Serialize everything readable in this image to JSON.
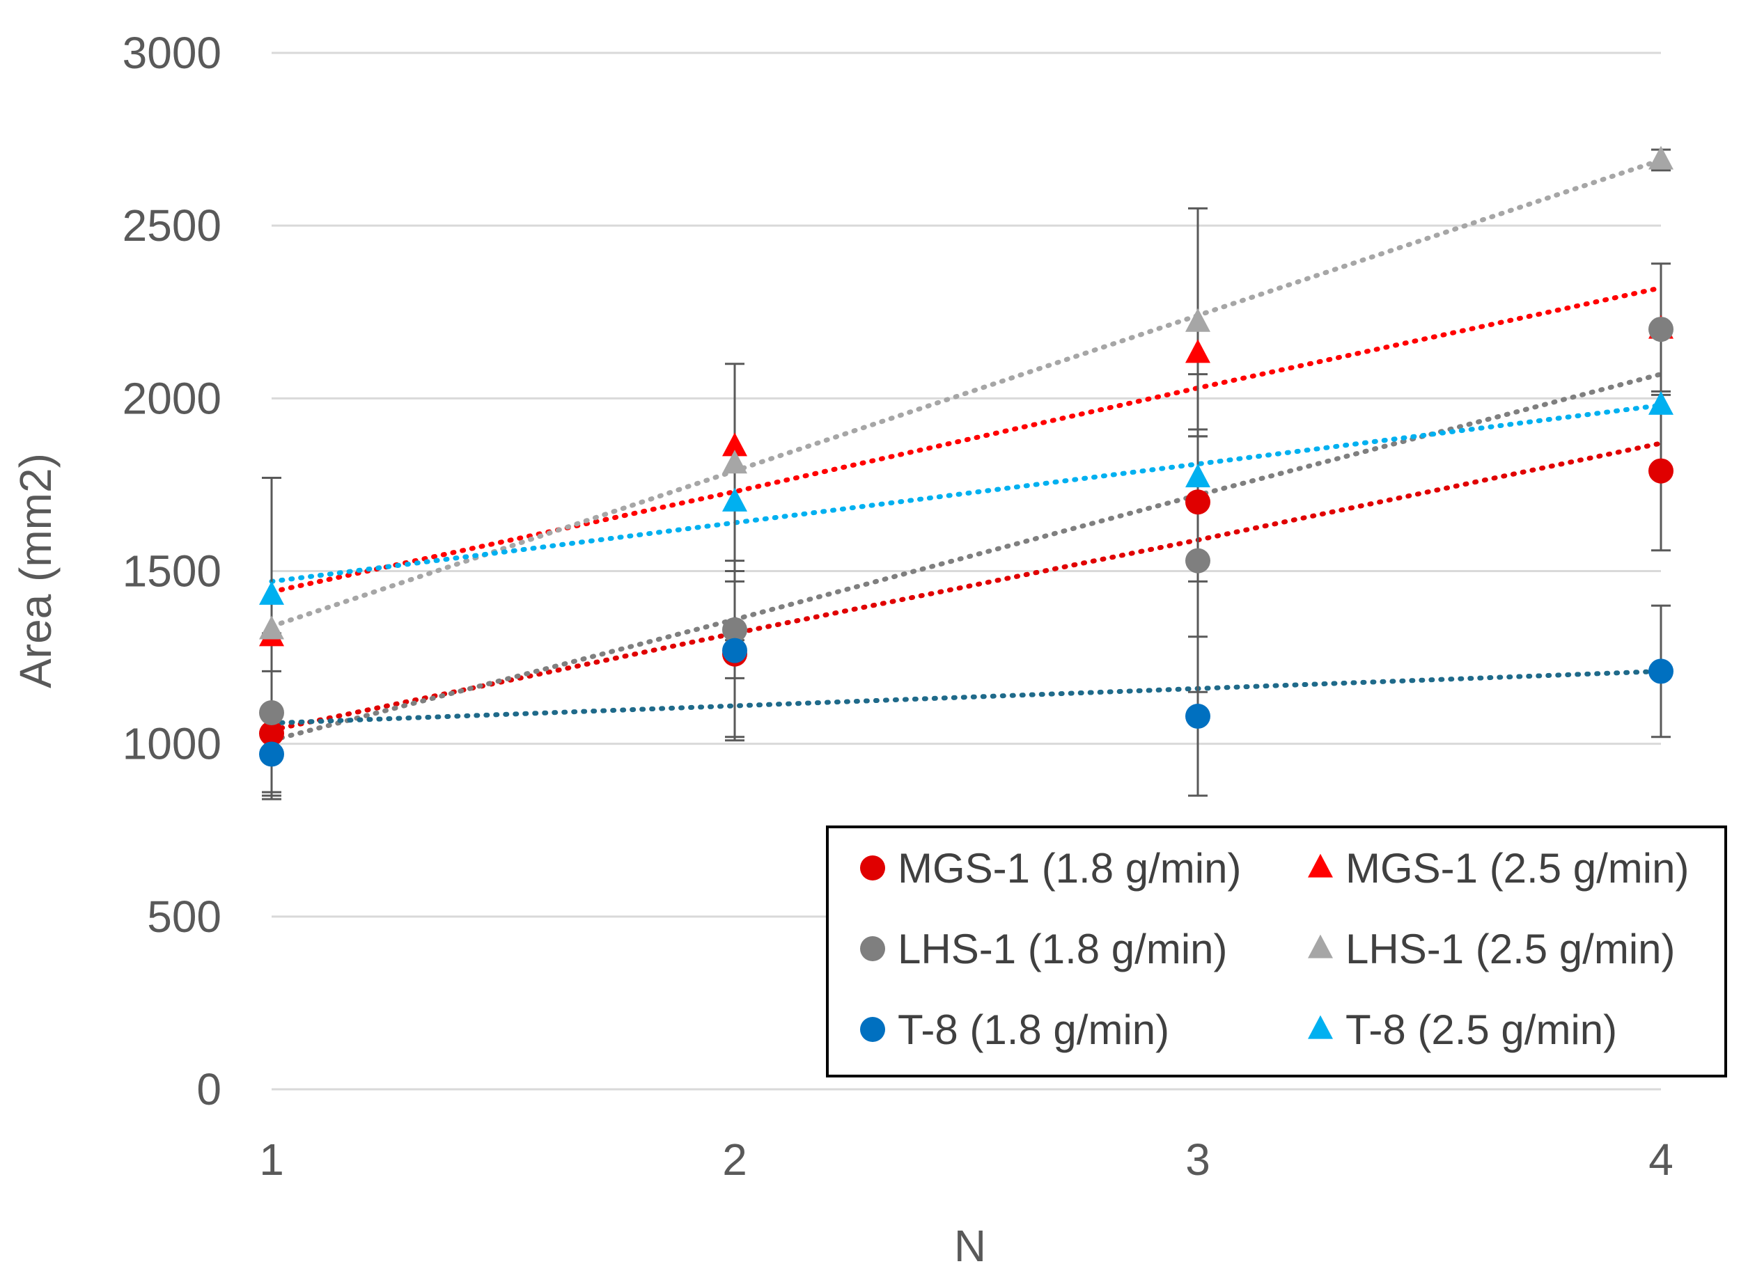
{
  "chart_data": {
    "type": "scatter",
    "title": "",
    "xlabel": "N",
    "ylabel": "Area (mm2)",
    "xlim": [
      1,
      4
    ],
    "ylim": [
      0,
      3000
    ],
    "x_ticks": [
      "1",
      "2",
      "3",
      "4"
    ],
    "y_ticks": [
      "0",
      "500",
      "1000",
      "1500",
      "2000",
      "2500",
      "3000"
    ],
    "grid": "horizontal",
    "legend_position": "bottom-right",
    "x": [
      1,
      2,
      3,
      4
    ],
    "series": [
      {
        "name": "MGS-1 (1.8 g/min)",
        "marker": "circle",
        "color": "#e00000",
        "values": [
          1030,
          1260,
          1700,
          1790
        ],
        "error": [
          180,
          240,
          190,
          230
        ],
        "trendline": [
          1040,
          1320,
          1590,
          1870
        ],
        "trend_color": "#e00000"
      },
      {
        "name": "MGS-1 (2.5 g/min)",
        "marker": "triangle",
        "color": "#ff0000",
        "values": [
          1310,
          1860,
          2130,
          2200
        ],
        "error": [
          0,
          0,
          0,
          0
        ],
        "trendline": [
          1440,
          1730,
          2030,
          2320
        ],
        "trend_color": "#ff0000"
      },
      {
        "name": "LHS-1 (1.8 g/min)",
        "marker": "circle",
        "color": "#7f7f7f",
        "values": [
          1090,
          1330,
          1530,
          2200
        ],
        "error": [
          230,
          140,
          380,
          190
        ],
        "trendline": [
          1010,
          1360,
          1720,
          2070
        ],
        "trend_color": "#7f7f7f"
      },
      {
        "name": "LHS-1 (2.5 g/min)",
        "marker": "triangle",
        "color": "#a6a6a6",
        "values": [
          1330,
          1810,
          2220,
          2690
        ],
        "error": [
          0,
          0,
          330,
          30
        ],
        "trendline": [
          1340,
          1790,
          2240,
          2690
        ],
        "trend_color": "#a6a6a6"
      },
      {
        "name": "T-8 (1.8 g/min)",
        "marker": "circle",
        "color": "#0070c0",
        "values": [
          970,
          1270,
          1080,
          1210
        ],
        "error": [
          130,
          260,
          230,
          190
        ],
        "trendline": [
          1060,
          1110,
          1160,
          1210
        ],
        "trend_color": "#1f6a8a"
      },
      {
        "name": "T-8 (2.5 g/min)",
        "marker": "triangle",
        "color": "#00b0f0",
        "values": [
          1430,
          1700,
          1770,
          1980
        ],
        "error": [
          340,
          400,
          300,
          0
        ],
        "trendline": [
          1470,
          1640,
          1810,
          1980
        ],
        "trend_color": "#00b0f0"
      }
    ]
  }
}
